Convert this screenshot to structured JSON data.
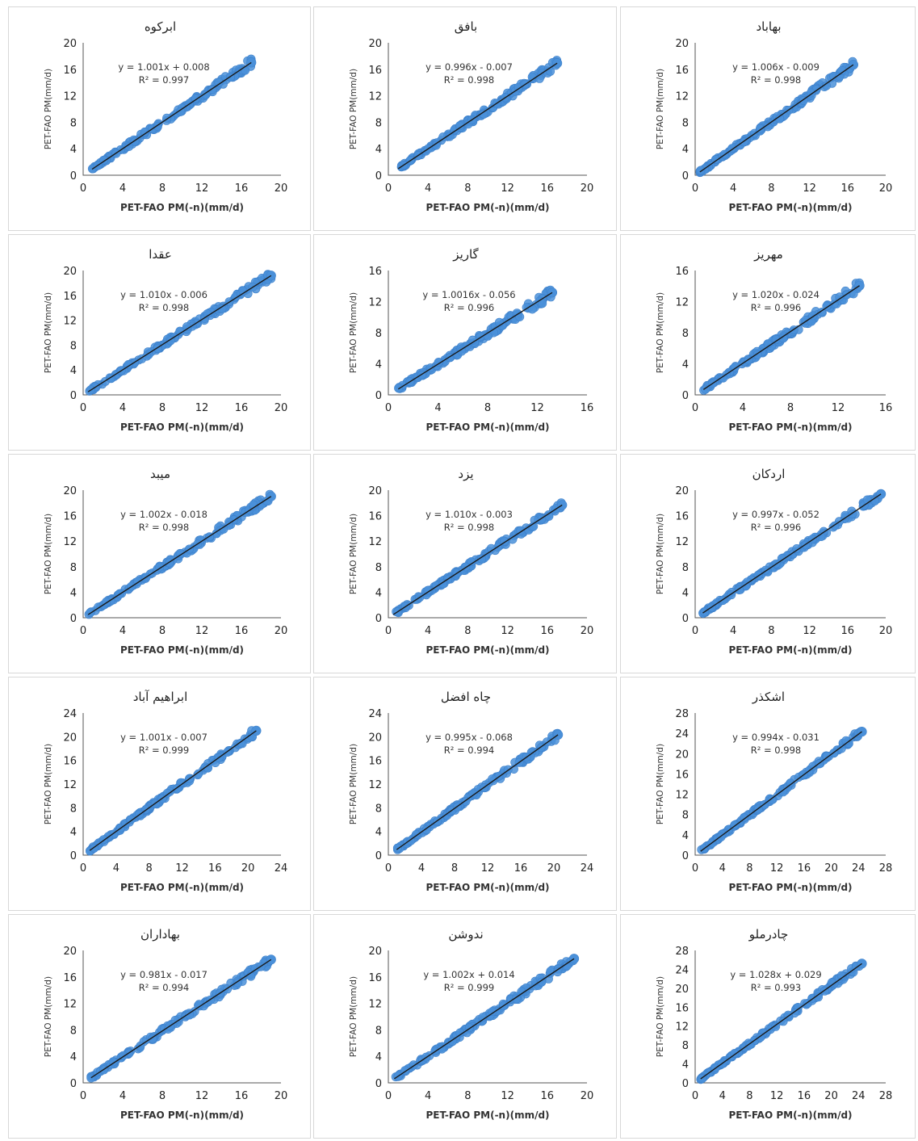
{
  "chart_data": [
    {
      "type": "scatter",
      "title": "ابرکوه",
      "equation": "y = 1.001x + 0.008",
      "r2": "R² = 0.997",
      "xlabel": "PET-FAO PM(-n)(mm/d)",
      "ylabel": "PET-FAO PM(mm/d)",
      "xlim": [
        0,
        20
      ],
      "ylim": [
        0,
        20
      ],
      "ticks": [
        0,
        4,
        8,
        12,
        16,
        20
      ],
      "slope": 1.001,
      "intercept": 0.008,
      "data_range": [
        0.9,
        17.0
      ],
      "series_color": "#4a90d9"
    },
    {
      "type": "scatter",
      "title": "بافق",
      "equation": "y = 0.996x - 0.007",
      "r2": "R² = 0.998",
      "xlabel": "PET-FAO PM(-n)(mm/d)",
      "ylabel": "PET-FAO PM(mm/d)",
      "xlim": [
        0,
        20
      ],
      "ylim": [
        0,
        20
      ],
      "ticks": [
        0,
        4,
        8,
        12,
        16,
        20
      ],
      "slope": 0.996,
      "intercept": -0.007,
      "data_range": [
        1.0,
        17.0
      ],
      "series_color": "#4a90d9"
    },
    {
      "type": "scatter",
      "title": "بهاباد",
      "equation": "y = 1.006x - 0.009",
      "r2": "R² = 0.998",
      "xlabel": "PET-FAO PM(-n)(mm/d)",
      "ylabel": "PET-FAO PM(mm/d)",
      "xlim": [
        0,
        20
      ],
      "ylim": [
        0,
        20
      ],
      "ticks": [
        0,
        4,
        8,
        12,
        16,
        20
      ],
      "slope": 1.006,
      "intercept": -0.009,
      "data_range": [
        0.5,
        16.6
      ],
      "series_color": "#4a90d9"
    },
    {
      "type": "scatter",
      "title": "عقدا",
      "equation": "y = 1.010x - 0.006",
      "r2": "R² = 0.998",
      "xlabel": "PET-FAO PM(-n)(mm/d)",
      "ylabel": "PET-FAO PM(mm/d)",
      "xlim": [
        0,
        20
      ],
      "ylim": [
        0,
        20
      ],
      "ticks": [
        0,
        4,
        8,
        12,
        16,
        20
      ],
      "slope": 1.01,
      "intercept": -0.006,
      "data_range": [
        0.5,
        19.0
      ],
      "series_color": "#4a90d9"
    },
    {
      "type": "scatter",
      "title": "گاریز",
      "equation": "y = 1.0016x - 0.056",
      "r2": "R² = 0.996",
      "xlabel": "PET-FAO PM(-n)(mm/d)",
      "ylabel": "PET-FAO PM(mm/d)",
      "xlim": [
        0,
        16
      ],
      "ylim": [
        0,
        16
      ],
      "ticks": [
        0,
        4,
        8,
        12,
        16
      ],
      "slope": 1.0016,
      "intercept": -0.056,
      "data_range": [
        0.8,
        13.2
      ],
      "series_color": "#4a90d9"
    },
    {
      "type": "scatter",
      "title": "مهریز",
      "equation": "y = 1.020x - 0.024",
      "r2": "R² = 0.996",
      "xlabel": "PET-FAO PM(-n)(mm/d)",
      "ylabel": "PET-FAO PM(mm/d)",
      "xlim": [
        0,
        16
      ],
      "ylim": [
        0,
        16
      ],
      "ticks": [
        0,
        4,
        8,
        12,
        16
      ],
      "slope": 1.02,
      "intercept": -0.024,
      "data_range": [
        0.7,
        13.8
      ],
      "series_color": "#4a90d9"
    },
    {
      "type": "scatter",
      "title": "میبد",
      "equation": "y = 1.002x - 0.018",
      "r2": "R² = 0.998",
      "xlabel": "PET-FAO PM(-n)(mm/d)",
      "ylabel": "PET-FAO PM(mm/d)",
      "xlim": [
        0,
        20
      ],
      "ylim": [
        0,
        20
      ],
      "ticks": [
        0,
        4,
        8,
        12,
        16,
        20
      ],
      "slope": 1.002,
      "intercept": -0.018,
      "data_range": [
        0.5,
        19.0
      ],
      "series_color": "#4a90d9"
    },
    {
      "type": "scatter",
      "title": "یزد",
      "equation": "y = 1.010x - 0.003",
      "r2": "R² = 0.998",
      "xlabel": "PET-FAO PM(-n)(mm/d)",
      "ylabel": "PET-FAO PM(mm/d)",
      "xlim": [
        0,
        20
      ],
      "ylim": [
        0,
        20
      ],
      "ticks": [
        0,
        4,
        8,
        12,
        16,
        20
      ],
      "slope": 1.01,
      "intercept": -0.003,
      "data_range": [
        0.5,
        17.5
      ],
      "series_color": "#4a90d9"
    },
    {
      "type": "scatter",
      "title": "اردکان",
      "equation": "y = 0.997x - 0.052",
      "r2": "R² = 0.996",
      "xlabel": "PET-FAO PM(-n)(mm/d)",
      "ylabel": "PET-FAO PM(mm/d)",
      "xlim": [
        0,
        20
      ],
      "ylim": [
        0,
        20
      ],
      "ticks": [
        0,
        4,
        8,
        12,
        16,
        20
      ],
      "slope": 0.997,
      "intercept": -0.052,
      "data_range": [
        0.8,
        19.5
      ],
      "series_color": "#4a90d9"
    },
    {
      "type": "scatter",
      "title": "ابراهیم آباد",
      "equation": "y = 1.001x - 0.007",
      "r2": "R² = 0.999",
      "xlabel": "PET-FAO PM(-n)(mm/d)",
      "ylabel": "PET-FAO PM(mm/d)",
      "xlim": [
        0,
        24
      ],
      "ylim": [
        0,
        24
      ],
      "ticks": [
        0,
        4,
        8,
        12,
        16,
        20,
        24
      ],
      "slope": 1.001,
      "intercept": -0.007,
      "data_range": [
        0.8,
        21.0
      ],
      "series_color": "#4a90d9"
    },
    {
      "type": "scatter",
      "title": "چاه افضل",
      "equation": "y = 0.995x - 0.068",
      "r2": "R² = 0.994",
      "xlabel": "PET-FAO PM(-n)(mm/d)",
      "ylabel": "PET-FAO PM(mm/d)",
      "xlim": [
        0,
        24
      ],
      "ylim": [
        0,
        24
      ],
      "ticks": [
        0,
        4,
        8,
        12,
        16,
        20,
        24
      ],
      "slope": 0.995,
      "intercept": -0.068,
      "data_range": [
        1.0,
        20.5
      ],
      "series_color": "#4a90d9"
    },
    {
      "type": "scatter",
      "title": "اشکذر",
      "equation": "y = 0.994x - 0.031",
      "r2": "R² = 0.998",
      "xlabel": "PET-FAO PM(-n)(mm/d)",
      "ylabel": "PET-FAO PM(mm/d)",
      "xlim": [
        0,
        28
      ],
      "ylim": [
        0,
        28
      ],
      "ticks": [
        0,
        4,
        8,
        12,
        16,
        20,
        24,
        28
      ],
      "slope": 0.994,
      "intercept": -0.031,
      "data_range": [
        0.8,
        24.5
      ],
      "series_color": "#4a90d9"
    },
    {
      "type": "scatter",
      "title": "بهاداران",
      "equation": "y = 0.981x - 0.017",
      "r2": "R² = 0.994",
      "xlabel": "PET-FAO PM(-n)(mm/d)",
      "ylabel": "PET-FAO PM(mm/d)",
      "xlim": [
        0,
        20
      ],
      "ylim": [
        0,
        20
      ],
      "ticks": [
        0,
        4,
        8,
        12,
        16,
        20
      ],
      "slope": 0.981,
      "intercept": -0.017,
      "data_range": [
        0.8,
        19.0
      ],
      "series_color": "#4a90d9"
    },
    {
      "type": "scatter",
      "title": "ندوشن",
      "equation": "y = 1.002x + 0.014",
      "r2": "R² = 0.999",
      "xlabel": "PET-FAO PM(-n)(mm/d)",
      "ylabel": "PET-FAO PM(mm/d)",
      "xlim": [
        0,
        20
      ],
      "ylim": [
        0,
        20
      ],
      "ticks": [
        0,
        4,
        8,
        12,
        16,
        20
      ],
      "slope": 1.002,
      "intercept": 0.014,
      "data_range": [
        0.6,
        18.7
      ],
      "series_color": "#4a90d9"
    },
    {
      "type": "scatter",
      "title": "چادرملو",
      "equation": "y = 1.028x + 0.029",
      "r2": "R² = 0.993",
      "xlabel": "PET-FAO PM(-n)(mm/d)",
      "ylabel": "PET-FAO PM(mm/d)",
      "xlim": [
        0,
        28
      ],
      "ylim": [
        0,
        28
      ],
      "ticks": [
        0,
        4,
        8,
        12,
        16,
        20,
        24,
        28
      ],
      "slope": 1.028,
      "intercept": 0.029,
      "data_range": [
        0.8,
        24.5
      ],
      "series_color": "#4a90d9"
    }
  ]
}
